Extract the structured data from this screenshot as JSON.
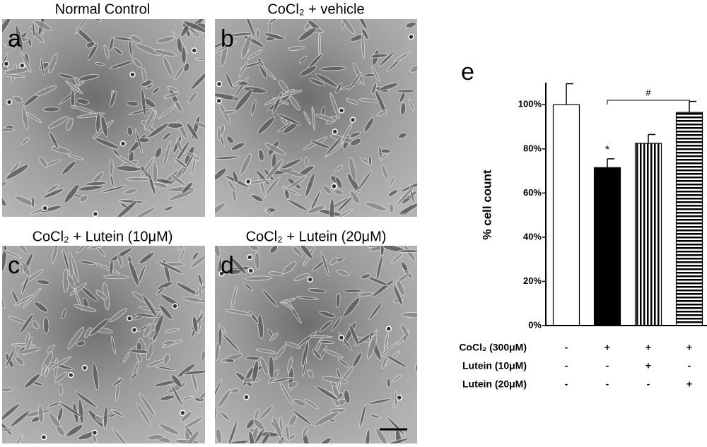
{
  "panels": [
    {
      "letter": "a",
      "title": "Normal Control"
    },
    {
      "letter": "b",
      "title": "CoCl₂ + vehicle"
    },
    {
      "letter": "c",
      "title": "CoCl₂ + Lutein (10μM)"
    },
    {
      "letter": "d",
      "title": "CoCl₂ + Lutein (20μM)"
    }
  ],
  "chart_data": {
    "type": "bar",
    "panel_letter": "e",
    "y_label": "% cell count",
    "values": [
      100,
      71.5,
      82.5,
      96.5
    ],
    "errors": [
      9.5,
      4,
      4,
      5
    ],
    "fills": [
      "white",
      "black",
      "vertical-stripes",
      "horizontal-stripes"
    ],
    "ylim": [
      0,
      110
    ],
    "yticks": [
      {
        "value": 0,
        "label": "0%"
      },
      {
        "value": 20,
        "label": "20%"
      },
      {
        "value": 40,
        "label": "40%"
      },
      {
        "value": 60,
        "label": "60%"
      },
      {
        "value": 80,
        "label": "80%"
      },
      {
        "value": 100,
        "label": "100%"
      }
    ],
    "annotations": [
      "*",
      "#"
    ],
    "conditions": [
      {
        "label": "CoCl₂ (300μM)",
        "signs": [
          "-",
          "+",
          "+",
          "+"
        ]
      },
      {
        "label": "Lutein (10μM)",
        "signs": [
          "-",
          "-",
          "+",
          "-"
        ]
      },
      {
        "label": "Lutein (20μM)",
        "signs": [
          "-",
          "-",
          "-",
          "+"
        ]
      }
    ]
  }
}
